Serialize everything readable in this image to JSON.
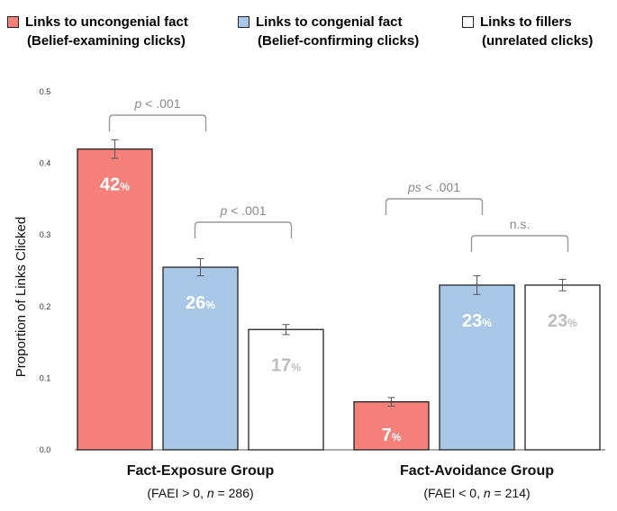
{
  "legend": [
    {
      "line1": "Links to uncongenial fact",
      "line2": "(Belief-examining clicks)",
      "color": "#f4807a"
    },
    {
      "line1": "Links to congenial fact",
      "line2": "(Belief-confirming clicks)",
      "color": "#a9c8e8"
    },
    {
      "line1": "Links to fillers",
      "line2": "(unrelated clicks)",
      "color": "#ffffff"
    }
  ],
  "chart_data": {
    "type": "bar",
    "ylabel": "Proportion of Links Clicked",
    "ylim": [
      0,
      0.5
    ],
    "yticks": [
      "0.0",
      "0.1",
      "0.2",
      "0.3",
      "0.4",
      "0.5"
    ],
    "grid": false,
    "legend_position": "top",
    "series_colors": [
      "#f4807a",
      "#a9c8e8",
      "#ffffff"
    ],
    "groups": [
      {
        "label": "Fact-Exposure Group",
        "sublabel_pre": "(FAEI > 0, ",
        "sublabel_n": "n",
        "sublabel_post": " = 286)",
        "values": [
          0.42,
          0.255,
          0.168
        ],
        "errors": [
          0.013,
          0.012,
          0.007
        ],
        "value_labels": [
          "42",
          "26",
          "17"
        ],
        "comparisons": [
          {
            "prefix": "p",
            "text": " < .001",
            "from": 0,
            "to": 1
          },
          {
            "prefix": "p",
            "text": " < .001",
            "from": 1,
            "to": 2
          }
        ]
      },
      {
        "label": "Fact-Avoidance Group",
        "sublabel_pre": "(FAEI < 0, ",
        "sublabel_n": "n",
        "sublabel_post": " = 214)",
        "values": [
          0.067,
          0.23,
          0.23
        ],
        "errors": [
          0.006,
          0.013,
          0.008
        ],
        "value_labels": [
          "7",
          "23",
          "23"
        ],
        "comparisons": [
          {
            "prefix": "ps",
            "text": " < .001",
            "from": 0,
            "to": 1
          },
          {
            "prefix": "",
            "text": "n.s.",
            "from": 1,
            "to": 2
          }
        ]
      }
    ],
    "percent_symbol": "%"
  }
}
